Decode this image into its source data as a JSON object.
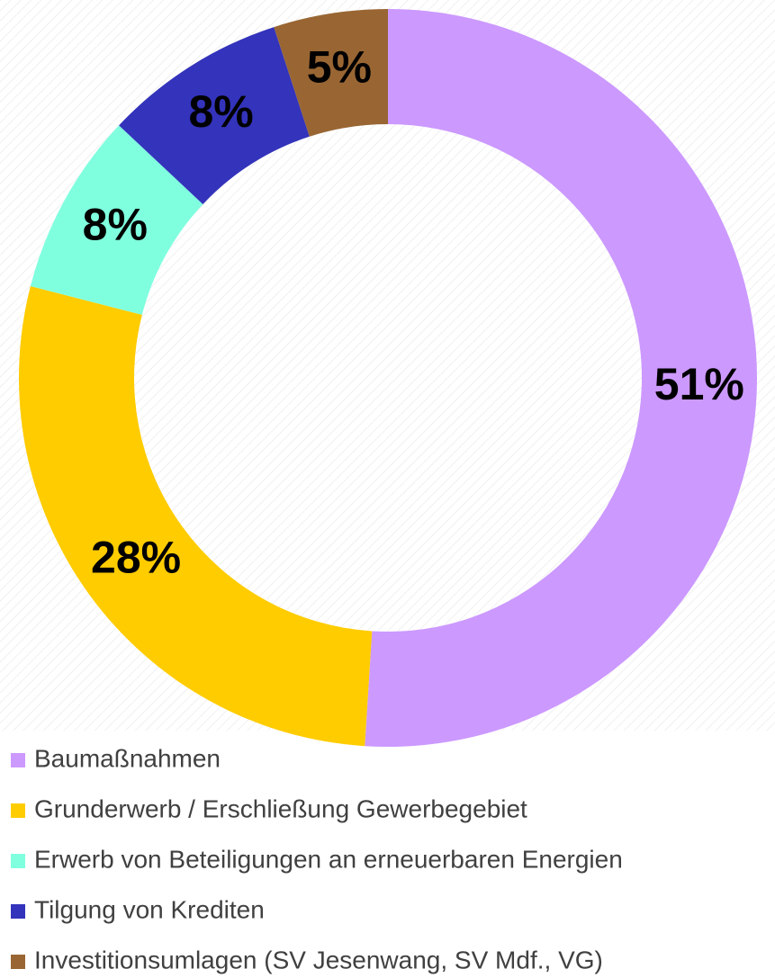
{
  "chart_data": {
    "type": "donut",
    "categories": [
      "Baumaßnahmen",
      "Grunderwerb / Erschließung Gewerbegebiet",
      "Erwerb von Beteiligungen an erneuerbaren Energien",
      "Tilgung von Krediten",
      "Investitionsumlagen (SV Jesenwang, SV Mdf., VG)"
    ],
    "values": [
      51,
      28,
      8,
      8,
      5
    ],
    "value_labels": [
      "51%",
      "28%",
      "8%",
      "8%",
      "5%"
    ],
    "colors": [
      "#cc99ff",
      "#ffcc00",
      "#80ffdf",
      "#3333bb",
      "#996633"
    ]
  }
}
